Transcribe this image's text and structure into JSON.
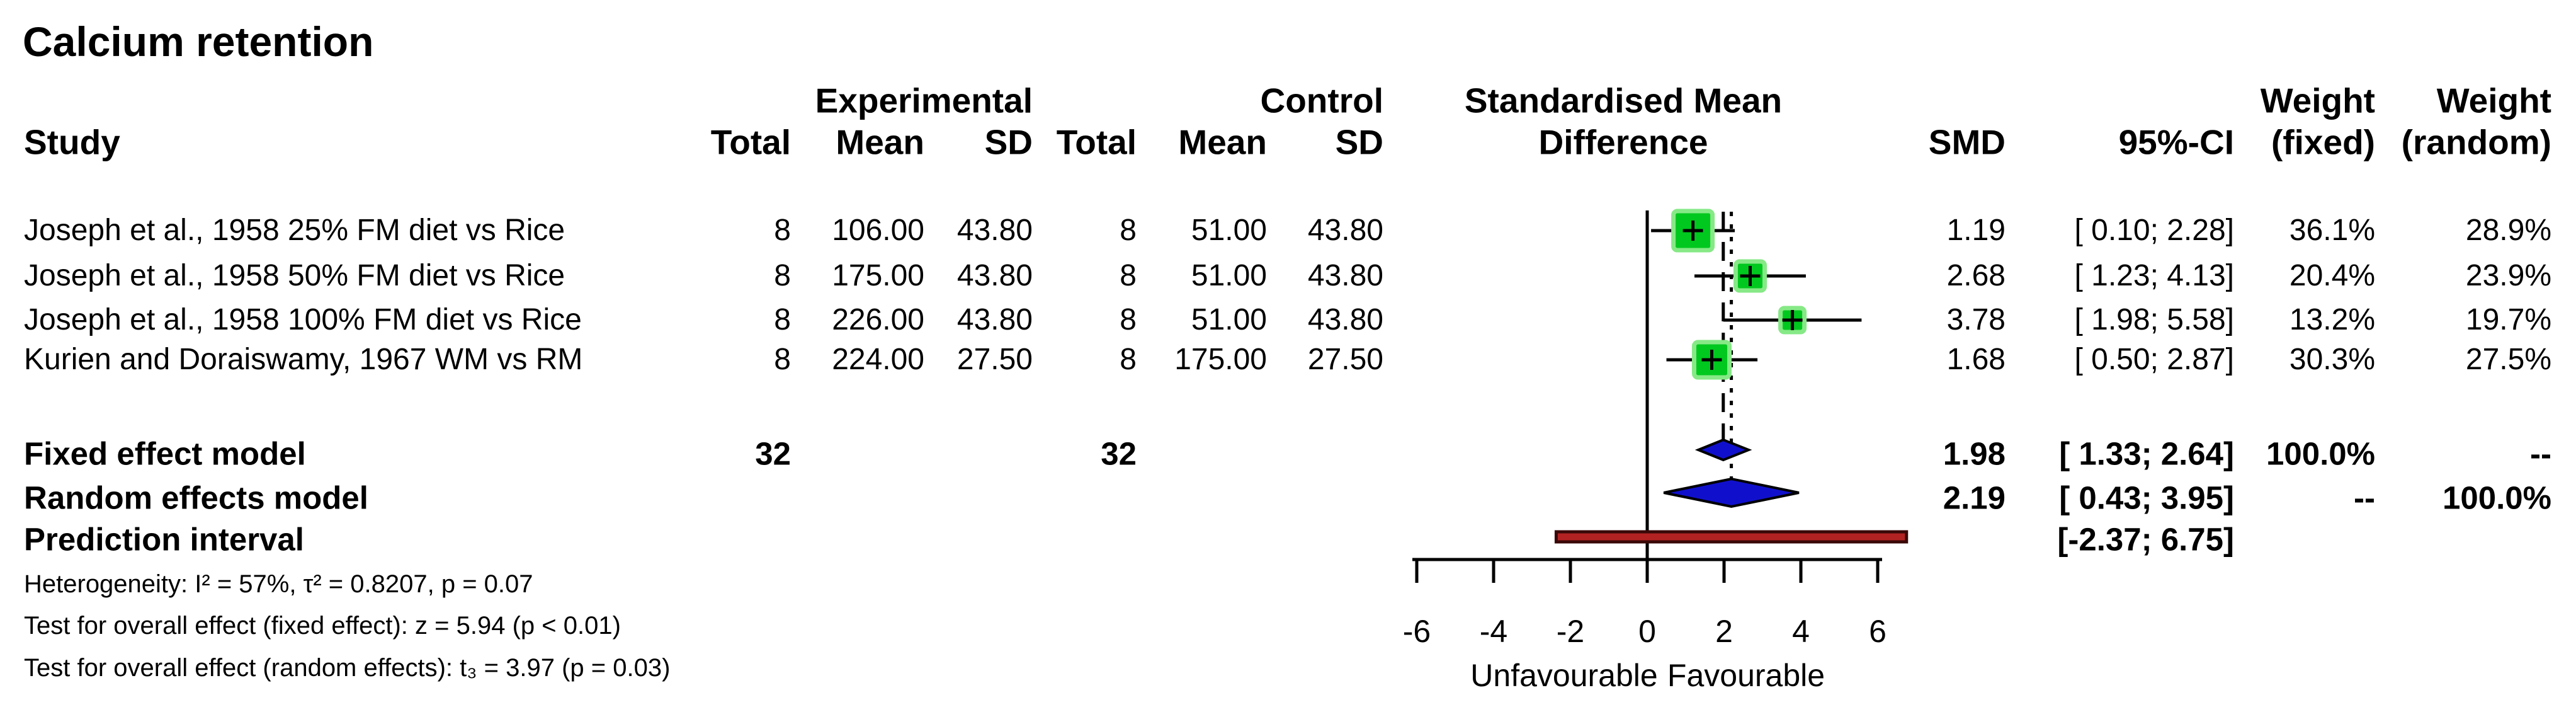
{
  "title": "Calcium retention",
  "header": {
    "study": "Study",
    "experimental": "Experimental",
    "control": "Control",
    "total": "Total",
    "mean": "Mean",
    "sd": "SD",
    "smd_plot_line1": "Standardised Mean",
    "smd_plot_line2": "Difference",
    "smd": "SMD",
    "ci": "95%-CI",
    "weight": "Weight",
    "weight_fixed_sub": "(fixed)",
    "weight_random_sub": "(random)"
  },
  "footnotes": [
    "Heterogeneity: I² = 57%, τ² = 0.8207, p = 0.07",
    "Test for overall effect (fixed effect): z = 5.94 (p < 0.01)",
    "Test for overall effect (random effects): t₃ = 3.97 (p = 0.03)"
  ],
  "chart_data": {
    "type": "forest",
    "title": "Calcium retention",
    "x_axis": {
      "ticks": [
        -6,
        -4,
        -2,
        0,
        2,
        4,
        6
      ],
      "tick_labels": [
        "-6",
        "-4",
        "-2",
        "0",
        "2",
        "4",
        "6"
      ],
      "range": [
        -6.9,
        7.2
      ],
      "neg_label": "Unfavourable",
      "pos_label": "Favourable"
    },
    "reference_value": 0,
    "fixed_effect_line": 1.98,
    "random_effect_line": 2.19,
    "studies": [
      {
        "name": "Joseph et al., 1958 25% FM diet vs Rice",
        "exp_total": "8",
        "exp_mean": "106.00",
        "exp_sd": "43.80",
        "ctrl_total": "8",
        "ctrl_mean": "51.00",
        "ctrl_sd": "43.80",
        "smd": 1.19,
        "ci_low": 0.1,
        "ci_high": 2.28,
        "smd_text": "1.19",
        "ci_text": "[ 0.10; 2.28]",
        "weight_fixed": "36.1%",
        "weight_random": "28.9%",
        "weight_fixed_value": 36.1
      },
      {
        "name": "Joseph et al., 1958 50% FM diet vs Rice",
        "exp_total": "8",
        "exp_mean": "175.00",
        "exp_sd": "43.80",
        "ctrl_total": "8",
        "ctrl_mean": "51.00",
        "ctrl_sd": "43.80",
        "smd": 2.68,
        "ci_low": 1.23,
        "ci_high": 4.13,
        "smd_text": "2.68",
        "ci_text": "[ 1.23; 4.13]",
        "weight_fixed": "20.4%",
        "weight_random": "23.9%",
        "weight_fixed_value": 20.4
      },
      {
        "name": "Joseph et al., 1958 100% FM diet vs Rice",
        "exp_total": "8",
        "exp_mean": "226.00",
        "exp_sd": "43.80",
        "ctrl_total": "8",
        "ctrl_mean": "51.00",
        "ctrl_sd": "43.80",
        "smd": 3.78,
        "ci_low": 1.98,
        "ci_high": 5.58,
        "smd_text": "3.78",
        "ci_text": "[ 1.98; 5.58]",
        "weight_fixed": "13.2%",
        "weight_random": "19.7%",
        "weight_fixed_value": 13.2
      },
      {
        "name": "Kurien and Doraiswamy, 1967 WM vs RM",
        "exp_total": "8",
        "exp_mean": "224.00",
        "exp_sd": "27.50",
        "ctrl_total": "8",
        "ctrl_mean": "175.00",
        "ctrl_sd": "27.50",
        "smd": 1.68,
        "ci_low": 0.5,
        "ci_high": 2.87,
        "smd_text": "1.68",
        "ci_text": "[ 0.50; 2.87]",
        "weight_fixed": "30.3%",
        "weight_random": "27.5%",
        "weight_fixed_value": 30.3
      }
    ],
    "pooled": [
      {
        "name": "Fixed effect model",
        "marker": "diamond",
        "exp_total": "32",
        "ctrl_total": "32",
        "smd": 1.98,
        "ci_low": 1.33,
        "ci_high": 2.64,
        "smd_text": "1.98",
        "ci_text": "[ 1.33; 2.64]",
        "weight_fixed": "100.0%",
        "weight_random": "--"
      },
      {
        "name": "Random effects model",
        "marker": "diamond",
        "smd": 2.19,
        "ci_low": 0.43,
        "ci_high": 3.95,
        "smd_text": "2.19",
        "ci_text": "[ 0.43; 3.95]",
        "weight_fixed": "--",
        "weight_random": "100.0%"
      },
      {
        "name": "Prediction interval",
        "marker": "bar",
        "ci_low": -2.37,
        "ci_high": 6.75,
        "ci_text": "[-2.37; 6.75]"
      }
    ],
    "colors": {
      "square": "#00C81E",
      "square_halo": "#86E986",
      "diamond": "#1010CC",
      "prediction_bar": "#B22222",
      "prediction_bar_border": "#3A0808",
      "line": "#000000"
    }
  }
}
